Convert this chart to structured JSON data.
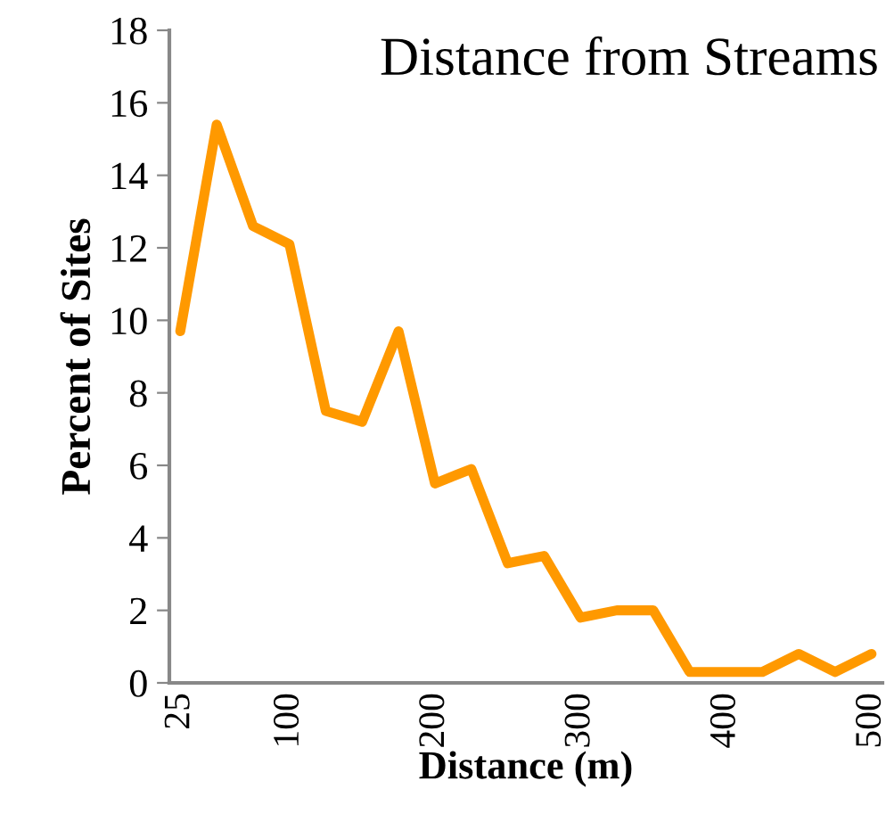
{
  "chart_data": {
    "type": "line",
    "title": "Distance from Streams",
    "xlabel": "Distance (m)",
    "ylabel": "Percent of Sites",
    "categories": [
      "25",
      null,
      null,
      "100",
      null,
      null,
      null,
      "200",
      null,
      null,
      null,
      "300",
      null,
      null,
      null,
      "400",
      null,
      null,
      null,
      "500"
    ],
    "series": [
      {
        "color": "#ff9900",
        "values": [
          9.7,
          15.4,
          12.6,
          12.1,
          7.5,
          7.2,
          9.7,
          5.5,
          5.9,
          3.3,
          3.5,
          1.8,
          2.0,
          2.0,
          0.3,
          0.3,
          0.3,
          0.8,
          0.3,
          0.8
        ]
      }
    ],
    "ylim": [
      0,
      18
    ],
    "yticks": [
      0,
      2,
      4,
      6,
      8,
      10,
      12,
      14,
      16,
      18
    ],
    "grid": false,
    "legend": false,
    "marker": "none",
    "line_style": "solid"
  }
}
